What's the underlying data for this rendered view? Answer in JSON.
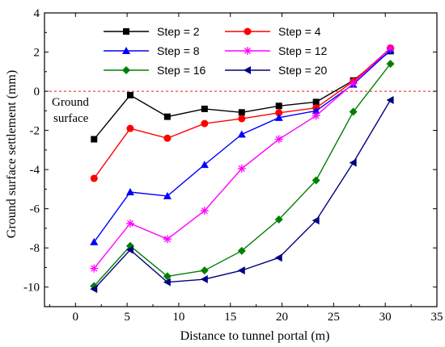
{
  "chart_data": {
    "type": "line",
    "xlabel": "Distance to tunnel portal (m)",
    "ylabel": "Ground surface settlement (mm)",
    "xlim": [
      -3,
      35
    ],
    "ylim": [
      -11,
      4
    ],
    "xticks": [
      0,
      5,
      10,
      15,
      20,
      25,
      30,
      35
    ],
    "yticks": [
      -10,
      -8,
      -6,
      -4,
      -2,
      0,
      2,
      4
    ],
    "x": [
      1.8,
      5.3,
      8.9,
      12.5,
      16.1,
      19.7,
      23.3,
      26.9,
      30.5
    ],
    "reference_line": {
      "y": 0,
      "color": "#e02020",
      "style": "dashed"
    },
    "annotation": {
      "lines": [
        "Ground",
        "surface"
      ]
    },
    "legend_placement": "top-center",
    "series": [
      {
        "name": "Step = 2",
        "color": "#000000",
        "marker": "square",
        "values": [
          -2.45,
          -0.2,
          -1.3,
          -0.9,
          -1.08,
          -0.75,
          -0.55,
          0.55,
          2.05
        ]
      },
      {
        "name": "Step = 4",
        "color": "#ff0000",
        "marker": "circle",
        "values": [
          -4.45,
          -1.9,
          -2.4,
          -1.65,
          -1.4,
          -1.1,
          -0.85,
          0.5,
          2.2
        ]
      },
      {
        "name": "Step = 8",
        "color": "#0000ff",
        "marker": "triangle-up",
        "values": [
          -7.7,
          -5.15,
          -5.35,
          -3.75,
          -2.2,
          -1.35,
          -1.0,
          0.35,
          2.1
        ]
      },
      {
        "name": "Step = 12",
        "color": "#ff00ff",
        "marker": "asterisk",
        "values": [
          -9.05,
          -6.75,
          -7.55,
          -6.1,
          -3.95,
          -2.45,
          -1.25,
          0.4,
          2.2
        ]
      },
      {
        "name": "Step = 16",
        "color": "#008000",
        "marker": "diamond",
        "values": [
          -9.95,
          -7.9,
          -9.45,
          -9.15,
          -8.15,
          -6.55,
          -4.55,
          -1.05,
          1.4
        ]
      },
      {
        "name": "Step = 20",
        "color": "#000080",
        "marker": "triangle-left",
        "values": [
          -10.1,
          -8.1,
          -9.75,
          -9.6,
          -9.15,
          -8.5,
          -6.6,
          -3.65,
          -0.45
        ]
      }
    ]
  }
}
